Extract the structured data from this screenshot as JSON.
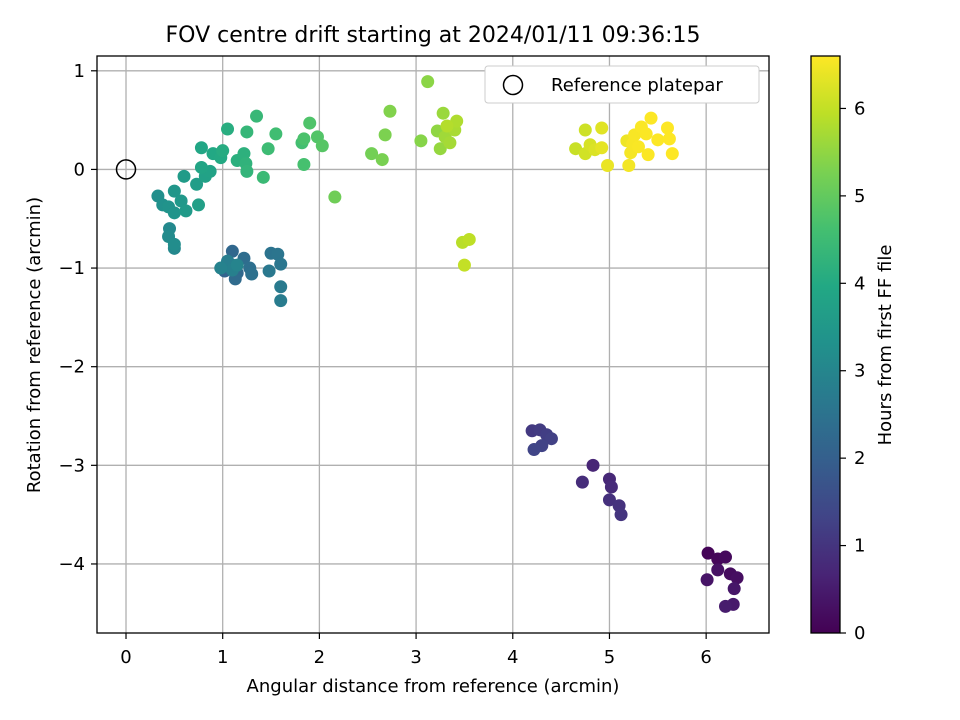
{
  "chart_data": {
    "type": "scatter",
    "title": "FOV centre drift starting at 2024/01/11 09:36:15",
    "xlabel": "Angular distance from reference (arcmin)",
    "ylabel": "Rotation from reference (arcmin)",
    "xlim": [
      -0.3,
      6.65
    ],
    "ylim": [
      -4.7,
      1.15
    ],
    "xticks": [
      0,
      1,
      2,
      3,
      4,
      5,
      6
    ],
    "yticks": [
      1,
      0,
      -1,
      -2,
      -3,
      -4
    ],
    "xtick_labels": [
      "0",
      "1",
      "2",
      "3",
      "4",
      "5",
      "6"
    ],
    "ytick_labels": [
      "1",
      "0",
      "−1",
      "−2",
      "−3",
      "−4"
    ],
    "grid": true,
    "colormap": "viridis",
    "colorbar": {
      "label": "Hours from first FF file",
      "range": [
        0,
        6.6
      ],
      "ticks": [
        0,
        1,
        2,
        3,
        4,
        5,
        6
      ],
      "tick_labels": [
        "0",
        "1",
        "2",
        "3",
        "4",
        "5",
        "6"
      ]
    },
    "legend": {
      "position": "top-right",
      "entries": [
        {
          "label": "Reference platepar",
          "marker": "open-circle"
        }
      ]
    },
    "reference_point": {
      "x": 0,
      "y": 0
    },
    "points": [
      {
        "x": 6.02,
        "y": -3.89,
        "h": 0.05
      },
      {
        "x": 6.12,
        "y": -3.95,
        "h": 0.1
      },
      {
        "x": 6.2,
        "y": -3.93,
        "h": 0.15
      },
      {
        "x": 6.25,
        "y": -4.1,
        "h": 0.2
      },
      {
        "x": 6.32,
        "y": -4.14,
        "h": 0.25
      },
      {
        "x": 6.12,
        "y": -4.06,
        "h": 0.3
      },
      {
        "x": 6.01,
        "y": -4.16,
        "h": 0.35
      },
      {
        "x": 6.29,
        "y": -4.25,
        "h": 0.4
      },
      {
        "x": 6.28,
        "y": -4.41,
        "h": 0.45
      },
      {
        "x": 6.2,
        "y": -4.43,
        "h": 0.5
      },
      {
        "x": 4.83,
        "y": -3.0,
        "h": 0.7
      },
      {
        "x": 5.0,
        "y": -3.14,
        "h": 0.75
      },
      {
        "x": 5.02,
        "y": -3.22,
        "h": 0.8
      },
      {
        "x": 4.72,
        "y": -3.17,
        "h": 0.85
      },
      {
        "x": 5.0,
        "y": -3.35,
        "h": 0.9
      },
      {
        "x": 5.1,
        "y": -3.41,
        "h": 0.95
      },
      {
        "x": 5.12,
        "y": -3.5,
        "h": 1.0
      },
      {
        "x": 4.2,
        "y": -2.65,
        "h": 1.1
      },
      {
        "x": 4.28,
        "y": -2.64,
        "h": 1.15
      },
      {
        "x": 4.35,
        "y": -2.69,
        "h": 1.2
      },
      {
        "x": 4.4,
        "y": -2.73,
        "h": 1.25
      },
      {
        "x": 4.3,
        "y": -2.8,
        "h": 1.3
      },
      {
        "x": 4.22,
        "y": -2.84,
        "h": 1.35
      },
      {
        "x": 1.02,
        "y": -1.03,
        "h": 2.1
      },
      {
        "x": 1.08,
        "y": -0.96,
        "h": 2.15
      },
      {
        "x": 1.1,
        "y": -0.83,
        "h": 2.2
      },
      {
        "x": 1.15,
        "y": -1.05,
        "h": 2.25
      },
      {
        "x": 1.13,
        "y": -1.11,
        "h": 2.3
      },
      {
        "x": 1.22,
        "y": -0.9,
        "h": 2.35
      },
      {
        "x": 1.28,
        "y": -1.0,
        "h": 2.4
      },
      {
        "x": 1.3,
        "y": -1.06,
        "h": 2.45
      },
      {
        "x": 1.5,
        "y": -0.85,
        "h": 2.5
      },
      {
        "x": 1.57,
        "y": -0.86,
        "h": 2.55
      },
      {
        "x": 1.6,
        "y": -0.96,
        "h": 2.6
      },
      {
        "x": 1.48,
        "y": -1.03,
        "h": 2.65
      },
      {
        "x": 1.6,
        "y": -1.19,
        "h": 2.7
      },
      {
        "x": 1.6,
        "y": -1.33,
        "h": 2.75
      },
      {
        "x": 1.05,
        "y": -0.93,
        "h": 2.8
      },
      {
        "x": 1.1,
        "y": -1.02,
        "h": 2.85
      },
      {
        "x": 0.98,
        "y": -1.0,
        "h": 2.9
      },
      {
        "x": 1.15,
        "y": -0.97,
        "h": 2.95
      },
      {
        "x": 0.5,
        "y": -0.8,
        "h": 3.05
      },
      {
        "x": 0.45,
        "y": -0.6,
        "h": 3.1
      },
      {
        "x": 0.44,
        "y": -0.68,
        "h": 3.15
      },
      {
        "x": 0.5,
        "y": -0.76,
        "h": 3.2
      },
      {
        "x": 0.33,
        "y": -0.27,
        "h": 3.25
      },
      {
        "x": 0.38,
        "y": -0.36,
        "h": 3.3
      },
      {
        "x": 0.44,
        "y": -0.38,
        "h": 3.35
      },
      {
        "x": 0.5,
        "y": -0.44,
        "h": 3.4
      },
      {
        "x": 0.5,
        "y": -0.22,
        "h": 3.45
      },
      {
        "x": 0.57,
        "y": -0.32,
        "h": 3.5
      },
      {
        "x": 0.62,
        "y": -0.42,
        "h": 3.55
      },
      {
        "x": 0.6,
        "y": -0.07,
        "h": 3.6
      },
      {
        "x": 0.73,
        "y": -0.15,
        "h": 3.65
      },
      {
        "x": 0.75,
        "y": -0.36,
        "h": 3.7
      },
      {
        "x": 0.82,
        "y": -0.07,
        "h": 3.75
      },
      {
        "x": 0.87,
        "y": -0.02,
        "h": 3.8
      },
      {
        "x": 0.78,
        "y": 0.02,
        "h": 3.85
      },
      {
        "x": 0.78,
        "y": 0.22,
        "h": 3.9
      },
      {
        "x": 0.9,
        "y": 0.16,
        "h": 3.95
      },
      {
        "x": 0.98,
        "y": 0.12,
        "h": 4.0
      },
      {
        "x": 1.0,
        "y": 0.19,
        "h": 4.05
      },
      {
        "x": 1.05,
        "y": 0.41,
        "h": 4.1
      },
      {
        "x": 1.15,
        "y": 0.09,
        "h": 4.15
      },
      {
        "x": 1.22,
        "y": 0.16,
        "h": 4.2
      },
      {
        "x": 1.24,
        "y": 0.06,
        "h": 4.25
      },
      {
        "x": 1.25,
        "y": -0.02,
        "h": 4.3
      },
      {
        "x": 1.25,
        "y": 0.38,
        "h": 4.35
      },
      {
        "x": 1.35,
        "y": 0.54,
        "h": 4.4
      },
      {
        "x": 1.42,
        "y": -0.08,
        "h": 4.45
      },
      {
        "x": 1.47,
        "y": 0.21,
        "h": 4.5
      },
      {
        "x": 1.55,
        "y": 0.36,
        "h": 4.55
      },
      {
        "x": 1.82,
        "y": 0.27,
        "h": 4.6
      },
      {
        "x": 1.84,
        "y": 0.05,
        "h": 4.65
      },
      {
        "x": 1.84,
        "y": 0.31,
        "h": 4.7
      },
      {
        "x": 1.9,
        "y": 0.47,
        "h": 4.75
      },
      {
        "x": 1.98,
        "y": 0.33,
        "h": 4.8
      },
      {
        "x": 2.03,
        "y": 0.24,
        "h": 4.85
      },
      {
        "x": 2.16,
        "y": -0.28,
        "h": 5.15
      },
      {
        "x": 2.54,
        "y": 0.16,
        "h": 5.2
      },
      {
        "x": 2.65,
        "y": 0.1,
        "h": 5.25
      },
      {
        "x": 2.68,
        "y": 0.35,
        "h": 5.3
      },
      {
        "x": 2.73,
        "y": 0.59,
        "h": 5.35
      },
      {
        "x": 3.05,
        "y": 0.29,
        "h": 5.4
      },
      {
        "x": 3.12,
        "y": 0.89,
        "h": 5.45
      },
      {
        "x": 3.22,
        "y": 0.39,
        "h": 5.5
      },
      {
        "x": 3.25,
        "y": 0.21,
        "h": 5.55
      },
      {
        "x": 3.28,
        "y": 0.57,
        "h": 5.6
      },
      {
        "x": 3.3,
        "y": 0.33,
        "h": 5.65
      },
      {
        "x": 3.35,
        "y": 0.27,
        "h": 5.7
      },
      {
        "x": 3.4,
        "y": 0.4,
        "h": 5.75
      },
      {
        "x": 3.42,
        "y": 0.49,
        "h": 5.8
      },
      {
        "x": 3.32,
        "y": 0.44,
        "h": 5.85
      },
      {
        "x": 3.48,
        "y": -0.74,
        "h": 5.9
      },
      {
        "x": 3.55,
        "y": -0.71,
        "h": 5.95
      },
      {
        "x": 3.5,
        "y": -0.97,
        "h": 6.0
      },
      {
        "x": 4.65,
        "y": 0.21,
        "h": 6.05
      },
      {
        "x": 4.75,
        "y": 0.4,
        "h": 6.1
      },
      {
        "x": 4.75,
        "y": 0.16,
        "h": 6.15
      },
      {
        "x": 4.8,
        "y": 0.25,
        "h": 6.2
      },
      {
        "x": 4.85,
        "y": 0.2,
        "h": 6.25
      },
      {
        "x": 4.92,
        "y": 0.42,
        "h": 6.3
      },
      {
        "x": 4.92,
        "y": 0.22,
        "h": 6.35
      },
      {
        "x": 4.98,
        "y": 0.04,
        "h": 6.4
      },
      {
        "x": 5.18,
        "y": 0.29,
        "h": 6.45
      },
      {
        "x": 5.2,
        "y": 0.04,
        "h": 6.5
      },
      {
        "x": 5.22,
        "y": 0.17,
        "h": 6.52
      },
      {
        "x": 5.24,
        "y": 0.26,
        "h": 6.54
      },
      {
        "x": 5.26,
        "y": 0.35,
        "h": 6.55
      },
      {
        "x": 5.3,
        "y": 0.23,
        "h": 6.56
      },
      {
        "x": 5.33,
        "y": 0.43,
        "h": 6.57
      },
      {
        "x": 5.38,
        "y": 0.36,
        "h": 6.58
      },
      {
        "x": 5.4,
        "y": 0.15,
        "h": 6.58
      },
      {
        "x": 5.43,
        "y": 0.52,
        "h": 6.59
      },
      {
        "x": 5.5,
        "y": 0.3,
        "h": 6.59
      },
      {
        "x": 5.6,
        "y": 0.42,
        "h": 6.6
      },
      {
        "x": 5.62,
        "y": 0.31,
        "h": 6.6
      },
      {
        "x": 5.65,
        "y": 0.16,
        "h": 6.6
      }
    ]
  }
}
